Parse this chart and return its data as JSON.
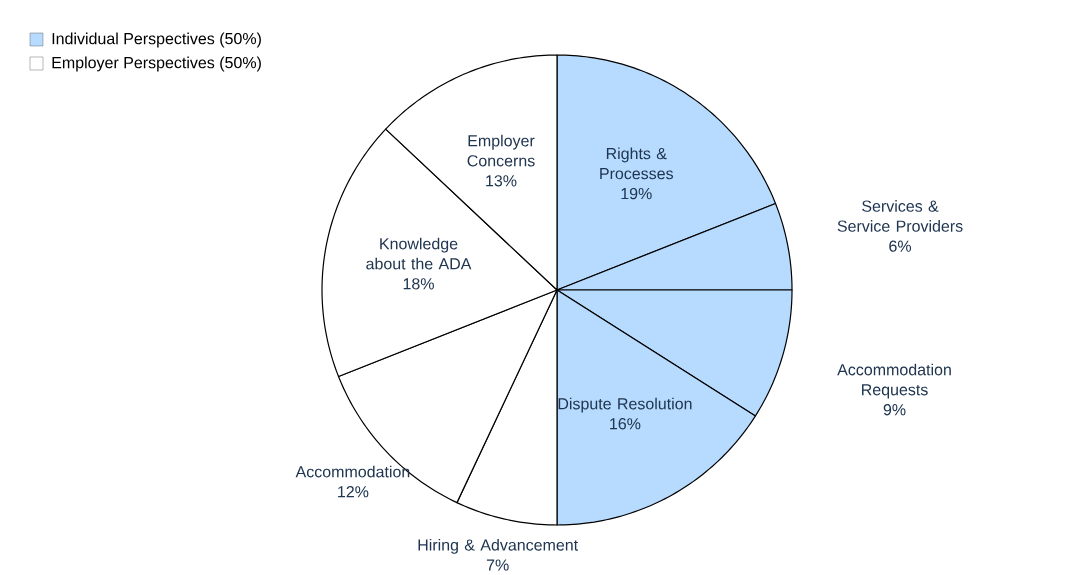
{
  "chart_data": {
    "type": "pie",
    "categories": [
      "Rights & Processes",
      "Services & Service Providers",
      "Accommodation Requests",
      "Dispute Resolution",
      "Hiring & Advancement",
      "Accommodation",
      "Knowledge about the ADA",
      "Employer Concerns"
    ],
    "values": [
      19,
      6,
      9,
      16,
      7,
      12,
      18,
      13
    ],
    "colors": [
      "#b7dbff",
      "#b7dbff",
      "#b7dbff",
      "#b7dbff",
      "#ffffff",
      "#ffffff",
      "#ffffff",
      "#ffffff"
    ],
    "value_labels": [
      "19%",
      "6%",
      "9%",
      "16%",
      "7%",
      "12%",
      "18%",
      "13%"
    ],
    "annotations": [
      "Individual  Perspectives (50%)",
      "Employer Perspectives (50%)"
    ]
  }
}
